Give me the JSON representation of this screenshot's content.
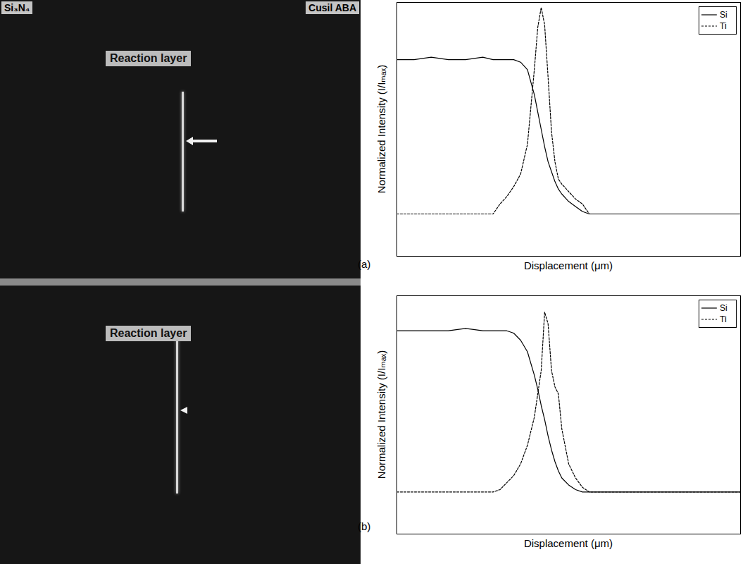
{
  "chart_data": [
    {
      "type": "line",
      "panel": "(a)",
      "x_label": "Displacement (μm)",
      "y_label": "Normalized Intensity (I/Iₘₐₓ)",
      "x": [
        0,
        5,
        10,
        15,
        20,
        25,
        28,
        30,
        32,
        34,
        36,
        38,
        40,
        41,
        42,
        43,
        44,
        45,
        46,
        47,
        48,
        50,
        52,
        54,
        56,
        60,
        70,
        80,
        90,
        100
      ],
      "xlim": [
        0,
        100
      ],
      "ylim": [
        0,
        1.02
      ],
      "tick_labels": false,
      "legend": "top-right",
      "series": [
        {
          "name": "Si",
          "color": "#000000",
          "line_style": "solid",
          "values": [
            0.79,
            0.79,
            0.8,
            0.79,
            0.79,
            0.8,
            0.79,
            0.79,
            0.79,
            0.79,
            0.78,
            0.75,
            0.65,
            0.58,
            0.51,
            0.44,
            0.38,
            0.34,
            0.3,
            0.27,
            0.25,
            0.22,
            0.2,
            0.18,
            0.17,
            0.17,
            0.17,
            0.17,
            0.17,
            0.17
          ]
        },
        {
          "name": "Ti",
          "color": "#000000",
          "line_style": "dashed",
          "values": [
            0.17,
            0.17,
            0.17,
            0.17,
            0.17,
            0.17,
            0.17,
            0.21,
            0.24,
            0.28,
            0.33,
            0.45,
            0.75,
            0.92,
            1.0,
            0.93,
            0.72,
            0.5,
            0.38,
            0.31,
            0.29,
            0.26,
            0.23,
            0.21,
            0.17,
            0.17,
            0.17,
            0.17,
            0.17,
            0.17
          ]
        }
      ]
    },
    {
      "type": "line",
      "panel": "(b)",
      "x_label": "Displacement (μm)",
      "y_label": "Normalized Intensity (I/Iₘₐₓ)",
      "x": [
        0,
        5,
        10,
        15,
        20,
        25,
        28,
        30,
        32,
        34,
        36,
        38,
        40,
        41,
        42,
        43,
        44,
        45,
        46,
        47,
        48,
        50,
        52,
        54,
        56,
        60,
        70,
        80,
        90,
        100
      ],
      "xlim": [
        0,
        100
      ],
      "ylim": [
        0,
        1.02
      ],
      "tick_labels": false,
      "legend": "top-right",
      "series": [
        {
          "name": "Si",
          "color": "#000000",
          "line_style": "solid",
          "values": [
            0.87,
            0.87,
            0.87,
            0.87,
            0.88,
            0.87,
            0.87,
            0.87,
            0.87,
            0.86,
            0.83,
            0.78,
            0.68,
            0.62,
            0.55,
            0.49,
            0.42,
            0.36,
            0.31,
            0.27,
            0.24,
            0.21,
            0.19,
            0.18,
            0.18,
            0.18,
            0.18,
            0.18,
            0.18,
            0.18
          ]
        },
        {
          "name": "Ti",
          "color": "#000000",
          "line_style": "dashed",
          "values": [
            0.18,
            0.18,
            0.18,
            0.18,
            0.18,
            0.18,
            0.18,
            0.19,
            0.22,
            0.25,
            0.3,
            0.38,
            0.5,
            0.6,
            0.7,
            0.95,
            0.9,
            0.7,
            0.63,
            0.6,
            0.45,
            0.3,
            0.24,
            0.2,
            0.18,
            0.18,
            0.18,
            0.18,
            0.18,
            0.18
          ]
        }
      ]
    }
  ],
  "images": [
    {
      "left_label": "Si₃N₄",
      "right_label": "Cusil ABA",
      "annotation": "Reaction layer"
    },
    {
      "annotation": "Reaction layer"
    }
  ]
}
